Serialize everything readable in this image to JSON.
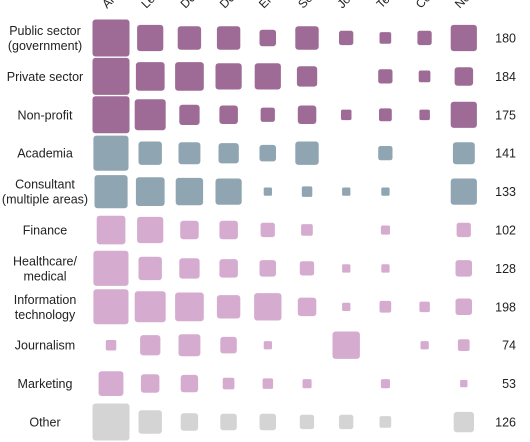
{
  "chart_data": {
    "type": "heatmap",
    "subtype": "sized-square-matrix",
    "columns": [
      "An",
      "Le",
      "De",
      "De",
      "En",
      "Sc",
      "Jo",
      "Te",
      "Co",
      "No"
    ],
    "rows": [
      {
        "label": [
          "Public sector",
          "(government)"
        ],
        "group": "sector",
        "total": "180",
        "values": [
          10,
          5,
          4,
          4,
          2,
          4,
          1.5,
          1,
          1.5,
          5
        ]
      },
      {
        "label": [
          "Private sector"
        ],
        "group": "sector",
        "total": "184",
        "values": [
          10,
          6,
          6,
          5,
          5,
          3,
          0,
          1.5,
          1,
          2.5
        ]
      },
      {
        "label": [
          "Non-profit"
        ],
        "group": "sector",
        "total": "175",
        "values": [
          10,
          7,
          3,
          2.5,
          1.5,
          2.5,
          0.8,
          1.2,
          0.8,
          5
        ]
      },
      {
        "label": [
          "Academia"
        ],
        "group": "academia",
        "total": "141",
        "values": [
          9,
          4,
          3.5,
          3,
          2,
          4,
          0,
          1.5,
          0,
          3.5
        ]
      },
      {
        "label": [
          "Consultant",
          "(multiple areas)"
        ],
        "group": "academia",
        "total": "133",
        "values": [
          8,
          6,
          5.5,
          5,
          0.5,
          0.8,
          0.5,
          0.5,
          0,
          5
        ]
      },
      {
        "label": [
          "Finance"
        ],
        "group": "industry",
        "total": "102",
        "values": [
          6,
          5,
          2.5,
          2.5,
          1.5,
          1,
          0,
          0.6,
          0,
          1.5
        ]
      },
      {
        "label": [
          "Healthcare/",
          "medical"
        ],
        "group": "industry",
        "total": "128",
        "values": [
          9,
          4,
          3,
          2.5,
          2,
          1.5,
          0.5,
          0.5,
          0,
          2
        ]
      },
      {
        "label": [
          "Information",
          "technology"
        ],
        "group": "industry",
        "total": "198",
        "values": [
          9,
          7,
          6,
          4,
          5.5,
          2.5,
          0.5,
          1,
          0.8,
          2
        ]
      },
      {
        "label": [
          "Journalism"
        ],
        "group": "industry",
        "total": "74",
        "values": [
          0.8,
          3,
          3.5,
          2,
          0.5,
          0,
          5.5,
          0,
          0.5,
          1
        ]
      },
      {
        "label": [
          "Marketing"
        ],
        "group": "industry",
        "total": "53",
        "values": [
          4.5,
          2.5,
          2.2,
          1,
          0.8,
          0.6,
          0,
          0.6,
          0,
          0.4
        ]
      },
      {
        "label": [
          "Other"
        ],
        "group": "other",
        "total": "126",
        "values": [
          10,
          4,
          2.2,
          2,
          2,
          1.5,
          1.5,
          1,
          0,
          3
        ]
      }
    ],
    "value_scale_max": 10,
    "colors": {
      "sector": "#9e6b96",
      "academia": "#8fa5b2",
      "industry": "#d5acd0",
      "other": "#d4d4d4"
    },
    "legend": "none",
    "grid": false
  }
}
